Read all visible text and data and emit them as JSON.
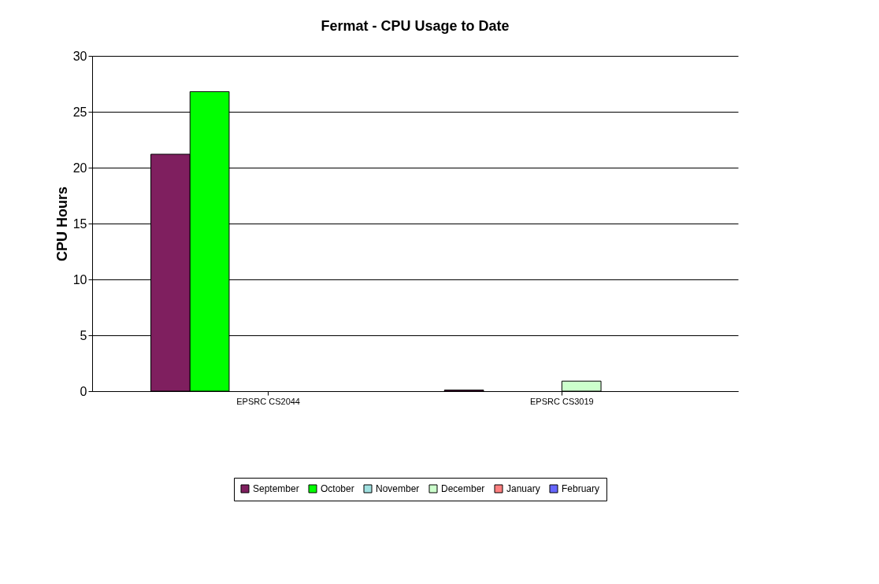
{
  "chart_data": {
    "type": "bar",
    "title": "Fermat - CPU Usage to Date",
    "ylabel": "CPU Hours",
    "categories": [
      "EPSRC CS2044",
      "EPSRC CS3019"
    ],
    "series": [
      {
        "name": "September",
        "color": "#7f1f5f",
        "values": [
          21.2,
          0.1
        ]
      },
      {
        "name": "October",
        "color": "#00ff00",
        "values": [
          26.8,
          0
        ]
      },
      {
        "name": "November",
        "color": "#a0e0e0",
        "values": [
          0,
          0
        ]
      },
      {
        "name": "December",
        "color": "#ccffcc",
        "values": [
          0,
          0.9
        ]
      },
      {
        "name": "January",
        "color": "#ff8080",
        "values": [
          0,
          0
        ]
      },
      {
        "name": "February",
        "color": "#6666ff",
        "values": [
          0,
          0
        ]
      }
    ],
    "ylim": [
      0,
      30
    ],
    "yticks": [
      0,
      5,
      10,
      15,
      20,
      25,
      30
    ],
    "grid": "y",
    "legend": "bottom"
  }
}
